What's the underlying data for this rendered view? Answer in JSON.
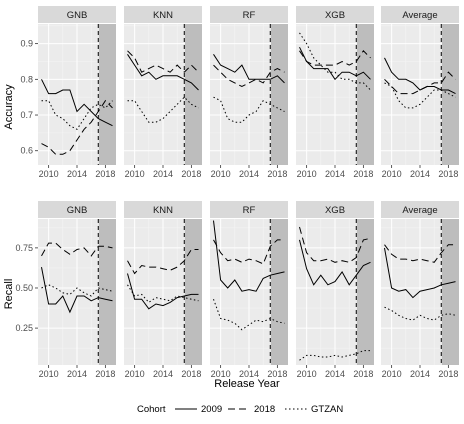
{
  "figure": {
    "ylabel_top": "Accuracy",
    "ylabel_bottom": "Recall",
    "xlabel": "Release Year",
    "legend_title": "Cohort"
  },
  "colors": {
    "panel_bg": "#ebebeb",
    "grid_major": "#ffffff",
    "strip_bg": "#d9d9d9",
    "shade": "#bdbdbd",
    "line": "#000000"
  },
  "chart_data": [
    {
      "type": "line",
      "metric": "Accuracy",
      "ylabel": "Accuracy",
      "xlabel": "Release Year",
      "xlim": [
        2008.5,
        2019.5
      ],
      "ylim": [
        0.56,
        0.955
      ],
      "x_ticks": [
        2010,
        2014,
        2018
      ],
      "y_ticks": [
        0.6,
        0.7,
        0.8,
        0.9
      ],
      "y_tick_labels": [
        "0.6",
        "0.7",
        "0.8",
        "0.9"
      ],
      "cutoff_year": 2017,
      "shade_from": 2017.1,
      "x": [
        2009,
        2010,
        2011,
        2012,
        2013,
        2014,
        2015,
        2016,
        2017,
        2018,
        2019
      ],
      "facets": [
        {
          "label": "GNB",
          "series": [
            {
              "name": "2009",
              "values": [
                0.8,
                0.76,
                0.76,
                0.77,
                0.77,
                0.71,
                0.73,
                0.71,
                0.69,
                0.68,
                0.67
              ]
            },
            {
              "name": "2018",
              "values": [
                0.62,
                0.61,
                0.59,
                0.59,
                0.6,
                0.63,
                0.66,
                0.68,
                0.71,
                0.74,
                0.72
              ]
            },
            {
              "name": "GTZAN",
              "values": [
                0.74,
                0.74,
                0.7,
                0.69,
                0.67,
                0.66,
                0.69,
                0.72,
                0.73,
                0.72,
                0.74
              ]
            }
          ]
        },
        {
          "label": "KNN",
          "series": [
            {
              "name": "2009",
              "values": [
                0.87,
                0.84,
                0.81,
                0.82,
                0.8,
                0.81,
                0.81,
                0.81,
                0.8,
                0.79,
                0.77
              ]
            },
            {
              "name": "2018",
              "values": [
                0.88,
                0.86,
                0.82,
                0.83,
                0.84,
                0.83,
                0.82,
                0.84,
                0.82,
                0.84,
                0.82
              ]
            },
            {
              "name": "GTZAN",
              "values": [
                0.74,
                0.74,
                0.71,
                0.68,
                0.68,
                0.69,
                0.71,
                0.73,
                0.75,
                0.73,
                0.72
              ]
            }
          ]
        },
        {
          "label": "RF",
          "series": [
            {
              "name": "2009",
              "values": [
                0.87,
                0.84,
                0.83,
                0.82,
                0.84,
                0.8,
                0.8,
                0.8,
                0.8,
                0.81,
                0.79
              ]
            },
            {
              "name": "2018",
              "values": [
                0.84,
                0.82,
                0.8,
                0.79,
                0.78,
                0.79,
                0.8,
                0.79,
                0.82,
                0.83,
                0.82
              ]
            },
            {
              "name": "GTZAN",
              "values": [
                0.75,
                0.74,
                0.69,
                0.68,
                0.68,
                0.7,
                0.71,
                0.74,
                0.73,
                0.72,
                0.71
              ]
            }
          ]
        },
        {
          "label": "XGB",
          "series": [
            {
              "name": "2009",
              "values": [
                0.89,
                0.85,
                0.83,
                0.83,
                0.83,
                0.8,
                0.82,
                0.82,
                0.81,
                0.82,
                0.8
              ]
            },
            {
              "name": "2018",
              "values": [
                0.88,
                0.85,
                0.84,
                0.84,
                0.84,
                0.84,
                0.85,
                0.84,
                0.85,
                0.88,
                0.86
              ]
            },
            {
              "name": "GTZAN",
              "values": [
                0.93,
                0.9,
                0.86,
                0.84,
                0.82,
                0.82,
                0.8,
                0.8,
                0.79,
                0.79,
                0.77
              ]
            }
          ]
        },
        {
          "label": "Average",
          "series": [
            {
              "name": "2009",
              "values": [
                0.86,
                0.82,
                0.8,
                0.8,
                0.79,
                0.77,
                0.78,
                0.78,
                0.77,
                0.77,
                0.76
              ]
            },
            {
              "name": "2018",
              "values": [
                0.8,
                0.78,
                0.76,
                0.76,
                0.76,
                0.77,
                0.78,
                0.79,
                0.79,
                0.82,
                0.8
              ]
            },
            {
              "name": "GTZAN",
              "values": [
                0.79,
                0.78,
                0.74,
                0.72,
                0.72,
                0.73,
                0.75,
                0.77,
                0.77,
                0.76,
                0.75
              ]
            }
          ]
        }
      ]
    },
    {
      "type": "line",
      "metric": "Recall",
      "ylabel": "Recall",
      "xlabel": "Release Year",
      "xlim": [
        2008.5,
        2019.5
      ],
      "ylim": [
        0.02,
        0.93
      ],
      "x_ticks": [
        2010,
        2014,
        2018
      ],
      "y_ticks": [
        0.25,
        0.5,
        0.75
      ],
      "y_tick_labels": [
        "0.25",
        "0.50",
        "0.75"
      ],
      "cutoff_year": 2017,
      "shade_from": 2017.1,
      "x": [
        2009,
        2010,
        2011,
        2012,
        2013,
        2014,
        2015,
        2016,
        2017,
        2018,
        2019
      ],
      "facets": [
        {
          "label": "GNB",
          "series": [
            {
              "name": "2009",
              "values": [
                0.63,
                0.4,
                0.4,
                0.45,
                0.35,
                0.45,
                0.45,
                0.42,
                0.44,
                0.43,
                0.42
              ]
            },
            {
              "name": "2018",
              "values": [
                0.7,
                0.78,
                0.78,
                0.74,
                0.71,
                0.74,
                0.75,
                0.7,
                0.76,
                0.76,
                0.75
              ]
            },
            {
              "name": "GTZAN",
              "values": [
                0.5,
                0.52,
                0.5,
                0.47,
                0.46,
                0.5,
                0.47,
                0.45,
                0.5,
                0.49,
                0.48
              ]
            }
          ]
        },
        {
          "label": "KNN",
          "series": [
            {
              "name": "2009",
              "values": [
                0.59,
                0.43,
                0.43,
                0.37,
                0.4,
                0.39,
                0.41,
                0.44,
                0.45,
                0.46,
                0.46
              ]
            },
            {
              "name": "2018",
              "values": [
                0.67,
                0.59,
                0.64,
                0.63,
                0.63,
                0.62,
                0.61,
                0.63,
                0.67,
                0.74,
                0.74
              ]
            },
            {
              "name": "GTZAN",
              "values": [
                0.52,
                0.45,
                0.46,
                0.41,
                0.44,
                0.43,
                0.42,
                0.45,
                0.44,
                0.43,
                0.42
              ]
            }
          ]
        },
        {
          "label": "RF",
          "series": [
            {
              "name": "2009",
              "values": [
                0.92,
                0.55,
                0.5,
                0.55,
                0.48,
                0.49,
                0.48,
                0.56,
                0.58,
                0.59,
                0.6
              ]
            },
            {
              "name": "2018",
              "values": [
                0.8,
                0.72,
                0.67,
                0.68,
                0.66,
                0.68,
                0.67,
                0.65,
                0.76,
                0.8,
                0.8
              ]
            },
            {
              "name": "GTZAN",
              "values": [
                0.43,
                0.31,
                0.3,
                0.28,
                0.24,
                0.27,
                0.3,
                0.29,
                0.31,
                0.29,
                0.28
              ]
            }
          ]
        },
        {
          "label": "XGB",
          "series": [
            {
              "name": "2009",
              "values": [
                0.8,
                0.62,
                0.52,
                0.58,
                0.52,
                0.54,
                0.6,
                0.52,
                0.58,
                0.64,
                0.66
              ]
            },
            {
              "name": "2018",
              "values": [
                0.88,
                0.72,
                0.67,
                0.67,
                0.68,
                0.66,
                0.67,
                0.66,
                0.69,
                0.8,
                0.81
              ]
            },
            {
              "name": "GTZAN",
              "values": [
                0.05,
                0.08,
                0.08,
                0.07,
                0.07,
                0.08,
                0.07,
                0.08,
                0.09,
                0.11,
                0.11
              ]
            }
          ]
        },
        {
          "label": "Average",
          "series": [
            {
              "name": "2009",
              "values": [
                0.75,
                0.5,
                0.48,
                0.49,
                0.44,
                0.48,
                0.49,
                0.5,
                0.52,
                0.53,
                0.54
              ]
            },
            {
              "name": "2018",
              "values": [
                0.77,
                0.71,
                0.68,
                0.68,
                0.67,
                0.68,
                0.67,
                0.66,
                0.72,
                0.77,
                0.77
              ]
            },
            {
              "name": "GTZAN",
              "values": [
                0.38,
                0.36,
                0.33,
                0.31,
                0.3,
                0.33,
                0.31,
                0.3,
                0.33,
                0.34,
                0.33
              ]
            }
          ]
        }
      ]
    }
  ],
  "legend": {
    "title": "Cohort",
    "items": [
      {
        "label": "2009",
        "dash": "solid"
      },
      {
        "label": "2018",
        "dash": "dashed"
      },
      {
        "label": "GTZAN",
        "dash": "dotted"
      }
    ]
  }
}
